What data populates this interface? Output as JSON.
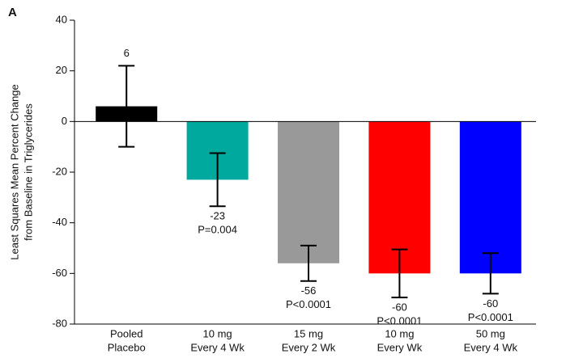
{
  "chart_data": {
    "type": "bar",
    "panel_label": "A",
    "ylabel": [
      "Least Squares Mean Percent Change",
      "from Baseline in Triglycerides"
    ],
    "categories": [
      [
        "Pooled",
        "Placebo"
      ],
      [
        "10 mg",
        "Every 4 Wk"
      ],
      [
        "15 mg",
        "Every 2 Wk"
      ],
      [
        "10 mg",
        "Every Wk"
      ],
      [
        "50 mg",
        "Every 4 Wk"
      ]
    ],
    "values": [
      6,
      -23,
      -56,
      -60,
      -60
    ],
    "errors": [
      16,
      10.5,
      7,
      9.5,
      8
    ],
    "p_values": [
      null,
      "P=0.004",
      "P<0.0001",
      "P<0.0001",
      "P<0.0001"
    ],
    "colors": [
      "#000000",
      "#00a99d",
      "#999999",
      "#ff0000",
      "#0000ff"
    ],
    "ylim": [
      -80,
      40
    ],
    "yticks": [
      -80,
      -60,
      -40,
      -20,
      0,
      20,
      40
    ]
  }
}
